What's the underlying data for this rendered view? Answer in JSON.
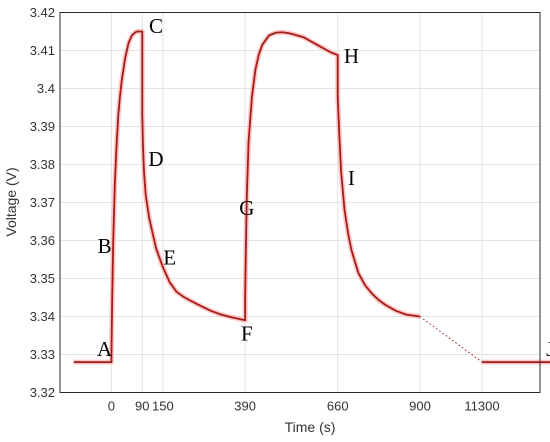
{
  "chart_data": {
    "type": "line",
    "xlabel": "Time (s)",
    "ylabel": "Voltage (V)",
    "ylim": [
      3.32,
      3.42
    ],
    "y_ticks": [
      "3.32",
      "3.33",
      "3.34",
      "3.35",
      "3.36",
      "3.37",
      "3.38",
      "3.39",
      "3.4",
      "3.41",
      "3.42"
    ],
    "x_ticks": [
      "0",
      "90",
      "150",
      "390",
      "660",
      "900",
      "11300"
    ],
    "x_tick_values": [
      0,
      90,
      150,
      390,
      660,
      900,
      11300
    ],
    "grid": true,
    "line_color": "#a31d1d",
    "glow_color": "#ffb3b3",
    "point_labels": [
      {
        "label": "A",
        "x": -20,
        "y": 3.3315
      },
      {
        "label": "B",
        "x": -20,
        "y": 3.3585
      },
      {
        "label": "C",
        "x": 130,
        "y": 3.4165
      },
      {
        "label": "D",
        "x": 130,
        "y": 3.3815
      },
      {
        "label": "E",
        "x": 170,
        "y": 3.3555
      },
      {
        "label": "F",
        "x": 395,
        "y": 3.3355
      },
      {
        "label": "G",
        "x": 395,
        "y": 3.3685
      },
      {
        "label": "H",
        "x": 700,
        "y": 3.4085
      },
      {
        "label": "I",
        "x": 700,
        "y": 3.3765
      },
      {
        "label": "J",
        "x": 11500,
        "y": 3.3315
      }
    ],
    "series": [
      {
        "x": [
          -110,
          0,
          0,
          2,
          5,
          10,
          15,
          20,
          25,
          30,
          40,
          50,
          60,
          70,
          75,
          80,
          90,
          90,
          92,
          95,
          100,
          110,
          120,
          130,
          150,
          170,
          190,
          210,
          230,
          260,
          290,
          320,
          350,
          380,
          390,
          390,
          392,
          395,
          400,
          410,
          420,
          430,
          440,
          460,
          480,
          500,
          520,
          540,
          560,
          580,
          600,
          620,
          640,
          660,
          660,
          665,
          670,
          680,
          690,
          700,
          720,
          740,
          760,
          780,
          800,
          830,
          860,
          900
        ],
        "y": [
          3.328,
          3.328,
          3.33,
          3.343,
          3.359,
          3.375,
          3.385,
          3.393,
          3.398,
          3.402,
          3.408,
          3.412,
          3.414,
          3.4148,
          3.415,
          3.415,
          3.415,
          3.393,
          3.385,
          3.378,
          3.372,
          3.366,
          3.362,
          3.358,
          3.353,
          3.349,
          3.3465,
          3.3452,
          3.3442,
          3.3428,
          3.3415,
          3.3405,
          3.3398,
          3.3392,
          3.339,
          3.345,
          3.357,
          3.372,
          3.386,
          3.398,
          3.405,
          3.409,
          3.4115,
          3.414,
          3.4147,
          3.4148,
          3.4145,
          3.414,
          3.4135,
          3.4125,
          3.4115,
          3.4105,
          3.4095,
          3.4088,
          3.398,
          3.387,
          3.378,
          3.368,
          3.362,
          3.3575,
          3.3515,
          3.3482,
          3.346,
          3.3443,
          3.343,
          3.3415,
          3.3405,
          3.34
        ]
      },
      {
        "x": [
          11300,
          11900
        ],
        "y": [
          3.328,
          3.328
        ]
      }
    ],
    "connector": {
      "x": [
        900,
        11300
      ],
      "y": [
        3.34,
        3.328
      ]
    }
  }
}
